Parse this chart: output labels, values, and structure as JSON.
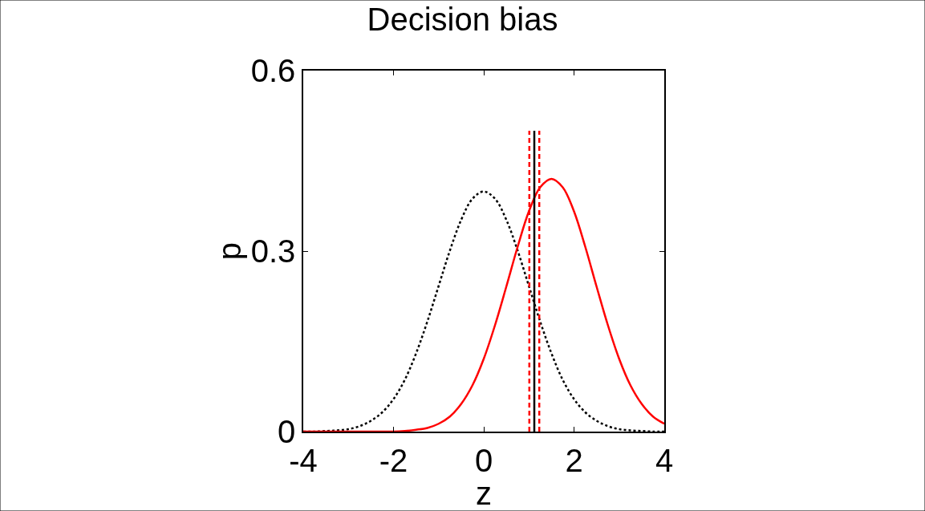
{
  "chart_data": {
    "type": "line",
    "title": "Decision bias",
    "xlabel": "z",
    "ylabel": "p",
    "x": [
      -4,
      -3.75,
      -3.5,
      -3.25,
      -3,
      -2.75,
      -2.5,
      -2.25,
      -2,
      -1.75,
      -1.5,
      -1.25,
      -1,
      -0.75,
      -0.5,
      -0.25,
      0,
      0.25,
      0.5,
      0.75,
      1,
      1.25,
      1.5,
      1.75,
      2,
      2.25,
      2.5,
      2.75,
      3,
      3.25,
      3.5,
      3.75,
      4
    ],
    "series": [
      {
        "color": "#000000",
        "line_style": "dotted",
        "values": [
          0,
          0,
          0.001,
          0.002,
          0.004,
          0.009,
          0.018,
          0.032,
          0.054,
          0.086,
          0.13,
          0.183,
          0.242,
          0.301,
          0.352,
          0.387,
          0.399,
          0.387,
          0.352,
          0.301,
          0.242,
          0.183,
          0.13,
          0.086,
          0.054,
          0.032,
          0.018,
          0.009,
          0.004,
          0.002,
          0.001,
          0,
          0
        ]
      },
      {
        "color": "#ff0000",
        "line_style": "solid",
        "values": [
          0,
          0,
          0,
          0,
          0,
          0,
          0,
          0,
          0,
          0.001,
          0.003,
          0.006,
          0.013,
          0.025,
          0.046,
          0.077,
          0.121,
          0.177,
          0.241,
          0.307,
          0.366,
          0.406,
          0.42,
          0.406,
          0.366,
          0.307,
          0.241,
          0.177,
          0.121,
          0.077,
          0.046,
          0.025,
          0.013
        ]
      },
      {
        "color": "#000000",
        "line_style": "solid",
        "x": [
          1.12,
          1.12
        ],
        "values": [
          0,
          0.5
        ]
      },
      {
        "color": "#ff0000",
        "line_style": "dashed",
        "x": [
          1.01,
          1.01
        ],
        "values": [
          0,
          0.5
        ]
      },
      {
        "color": "#ff0000",
        "line_style": "dashed",
        "x": [
          1.23,
          1.23
        ],
        "values": [
          0,
          0.5
        ]
      }
    ],
    "xlim": [
      -4,
      4
    ],
    "xticks": [
      -4,
      -2,
      0,
      2,
      4
    ],
    "ylim": [
      0,
      0.6
    ],
    "yticks": [
      0,
      0.3,
      0.6
    ]
  }
}
